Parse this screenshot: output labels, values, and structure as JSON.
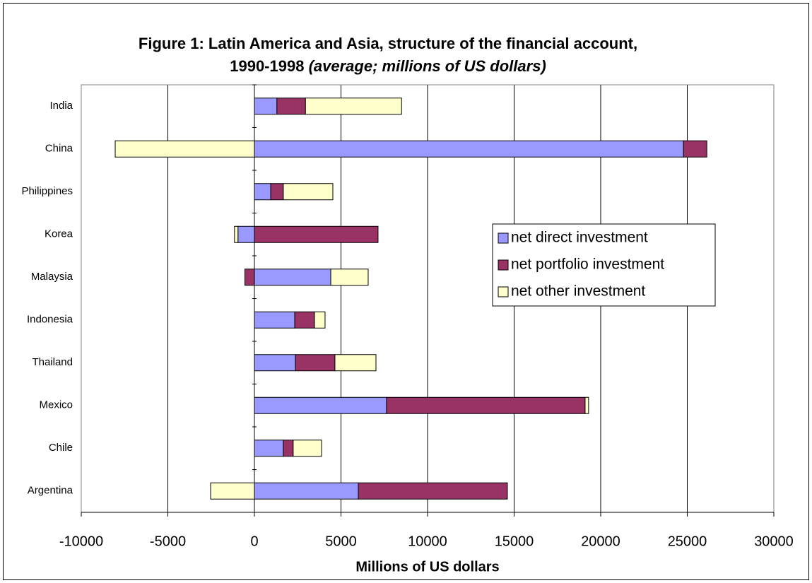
{
  "chart_data": {
    "type": "bar",
    "orientation": "horizontal",
    "stacked": true,
    "title": "Figure 1: Latin America and Asia, structure of the financial account,",
    "title_line2": "1990-1998",
    "title_note": "(average; millions of US dollars)",
    "x_label": "Millions of US dollars",
    "categories": [
      "India",
      "China",
      "Philippines",
      "Korea",
      "Malaysia",
      "Indonesia",
      "Thailand",
      "Mexico",
      "Chile",
      "Argentina"
    ],
    "series": [
      {
        "name": "net direct investment",
        "color": "#9999ff",
        "values": [
          1300,
          24780,
          940,
          -950,
          4410,
          2330,
          2370,
          7630,
          1670,
          6000
        ]
      },
      {
        "name": "net portfolio investment",
        "color": "#993366",
        "values": [
          1650,
          1350,
          730,
          7140,
          -550,
          1140,
          2280,
          11470,
          570,
          8610
        ]
      },
      {
        "name": "net other investment",
        "color": "#ffffcc",
        "values": [
          5550,
          -8040,
          2860,
          -200,
          2160,
          610,
          2370,
          200,
          1640,
          -2530
        ]
      }
    ],
    "xlim": [
      -10000,
      30000
    ],
    "xticks": [
      -10000,
      -5000,
      0,
      5000,
      10000,
      15000,
      20000,
      25000,
      30000
    ],
    "grid": true,
    "legend": "right"
  }
}
